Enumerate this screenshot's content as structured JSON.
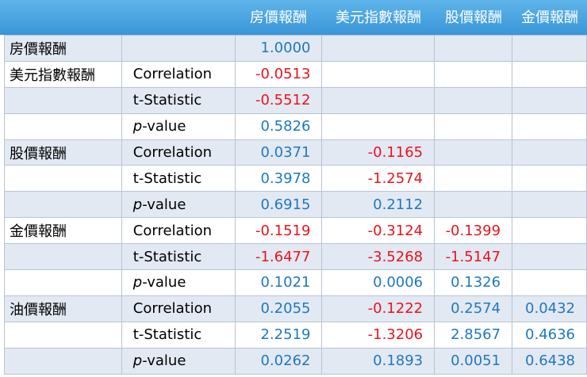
{
  "columns": [
    "房價報酬",
    "美元指數報酬",
    "股價報酬",
    "金價報酬"
  ],
  "colors": {
    "header_bg": "#4aa6e2",
    "positive": "#1e78c2",
    "negative": "#e8141e",
    "band": "#e3e9f3"
  },
  "rows": [
    {
      "group": "房價報酬",
      "stat": "",
      "values": [
        "1.0000",
        "",
        "",
        ""
      ]
    },
    {
      "group": "美元指數報酬",
      "stat": "Correlation",
      "values": [
        "-0.0513",
        "",
        "",
        ""
      ]
    },
    {
      "group": "",
      "stat": "t-Statistic",
      "values": [
        "-0.5512",
        "",
        "",
        ""
      ]
    },
    {
      "group": "",
      "stat": "p-value",
      "values": [
        "0.5826",
        "",
        "",
        ""
      ]
    },
    {
      "group": "股價報酬",
      "stat": "Correlation",
      "values": [
        "0.0371",
        "-0.1165",
        "",
        ""
      ]
    },
    {
      "group": "",
      "stat": "t-Statistic",
      "values": [
        "0.3978",
        "-1.2574",
        "",
        ""
      ]
    },
    {
      "group": "",
      "stat": "p-value",
      "values": [
        "0.6915",
        "0.2112",
        "",
        ""
      ]
    },
    {
      "group": "金價報酬",
      "stat": "Correlation",
      "values": [
        "-0.1519",
        "-0.3124",
        "-0.1399",
        ""
      ]
    },
    {
      "group": "",
      "stat": "t-Statistic",
      "values": [
        "-1.6477",
        "-3.5268",
        "-1.5147",
        ""
      ]
    },
    {
      "group": "",
      "stat": "p-value",
      "values": [
        "0.1021",
        "0.0006",
        "0.1326",
        ""
      ]
    },
    {
      "group": "油價報酬",
      "stat": "Correlation",
      "values": [
        "0.2055",
        "-0.1222",
        "0.2574",
        "0.0432"
      ]
    },
    {
      "group": "",
      "stat": "t-Statistic",
      "values": [
        "2.2519",
        "-1.3206",
        "2.8567",
        "0.4636"
      ]
    },
    {
      "group": "",
      "stat": "p-value",
      "values": [
        "0.0262",
        "0.1893",
        "0.0051",
        "0.6438"
      ]
    }
  ]
}
